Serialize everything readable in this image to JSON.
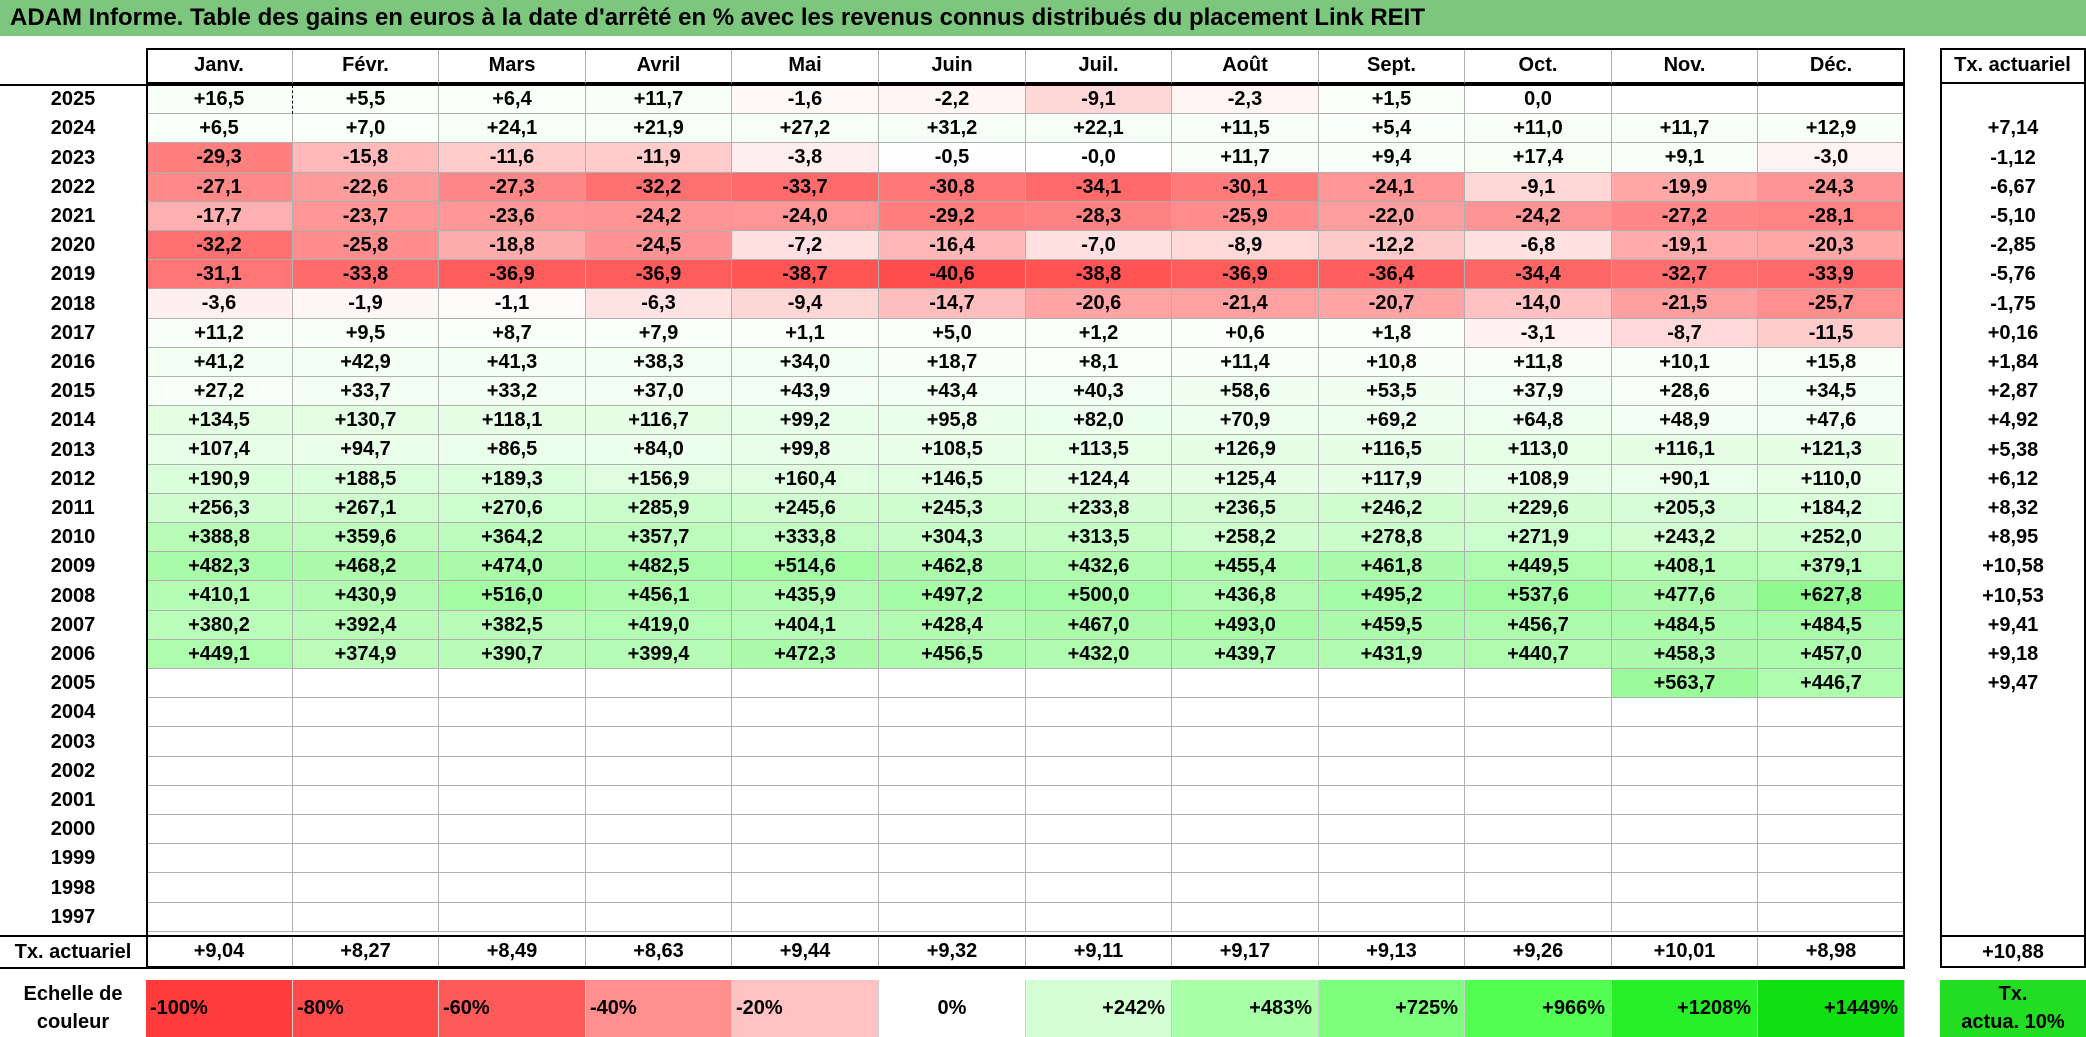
{
  "title": "ADAM Informe. Table des gains en euros à la date d'arrêté en % avec les revenus connus distribués du placement Link REIT",
  "months": [
    "Janv.",
    "Févr.",
    "Mars",
    "Avril",
    "Mai",
    "Juin",
    "Juil.",
    "Août",
    "Sept.",
    "Oct.",
    "Nov.",
    "Déc."
  ],
  "tx_header": "Tx. actuariel",
  "chart_data": {
    "type": "heatmap",
    "columns": [
      "Janv.",
      "Févr.",
      "Mars",
      "Avril",
      "Mai",
      "Juin",
      "Juil.",
      "Août",
      "Sept.",
      "Oct.",
      "Nov.",
      "Déc."
    ],
    "rows": [
      {
        "year": "2025",
        "values": [
          "+16,5",
          "+5,5",
          "+6,4",
          "+11,7",
          "-1,6",
          "-2,2",
          "-9,1",
          "-2,3",
          "+1,5",
          "0,0",
          "",
          ""
        ],
        "tx": ""
      },
      {
        "year": "2024",
        "values": [
          "+6,5",
          "+7,0",
          "+24,1",
          "+21,9",
          "+27,2",
          "+31,2",
          "+22,1",
          "+11,5",
          "+5,4",
          "+11,0",
          "+11,7",
          "+12,9"
        ],
        "tx": "+7,14"
      },
      {
        "year": "2023",
        "values": [
          "-29,3",
          "-15,8",
          "-11,6",
          "-11,9",
          "-3,8",
          "-0,5",
          "-0,0",
          "+11,7",
          "+9,4",
          "+17,4",
          "+9,1",
          "-3,0"
        ],
        "tx": "-1,12"
      },
      {
        "year": "2022",
        "values": [
          "-27,1",
          "-22,6",
          "-27,3",
          "-32,2",
          "-33,7",
          "-30,8",
          "-34,1",
          "-30,1",
          "-24,1",
          "-9,1",
          "-19,9",
          "-24,3"
        ],
        "tx": "-6,67"
      },
      {
        "year": "2021",
        "values": [
          "-17,7",
          "-23,7",
          "-23,6",
          "-24,2",
          "-24,0",
          "-29,2",
          "-28,3",
          "-25,9",
          "-22,0",
          "-24,2",
          "-27,2",
          "-28,1"
        ],
        "tx": "-5,10"
      },
      {
        "year": "2020",
        "values": [
          "-32,2",
          "-25,8",
          "-18,8",
          "-24,5",
          "-7,2",
          "-16,4",
          "-7,0",
          "-8,9",
          "-12,2",
          "-6,8",
          "-19,1",
          "-20,3"
        ],
        "tx": "-2,85"
      },
      {
        "year": "2019",
        "values": [
          "-31,1",
          "-33,8",
          "-36,9",
          "-36,9",
          "-38,7",
          "-40,6",
          "-38,8",
          "-36,9",
          "-36,4",
          "-34,4",
          "-32,7",
          "-33,9"
        ],
        "tx": "-5,76"
      },
      {
        "year": "2018",
        "values": [
          "-3,6",
          "-1,9",
          "-1,1",
          "-6,3",
          "-9,4",
          "-14,7",
          "-20,6",
          "-21,4",
          "-20,7",
          "-14,0",
          "-21,5",
          "-25,7"
        ],
        "tx": "-1,75"
      },
      {
        "year": "2017",
        "values": [
          "+11,2",
          "+9,5",
          "+8,7",
          "+7,9",
          "+1,1",
          "+5,0",
          "+1,2",
          "+0,6",
          "+1,8",
          "-3,1",
          "-8,7",
          "-11,5"
        ],
        "tx": "+0,16"
      },
      {
        "year": "2016",
        "values": [
          "+41,2",
          "+42,9",
          "+41,3",
          "+38,3",
          "+34,0",
          "+18,7",
          "+8,1",
          "+11,4",
          "+10,8",
          "+11,8",
          "+10,1",
          "+15,8"
        ],
        "tx": "+1,84"
      },
      {
        "year": "2015",
        "values": [
          "+27,2",
          "+33,7",
          "+33,2",
          "+37,0",
          "+43,9",
          "+43,4",
          "+40,3",
          "+58,6",
          "+53,5",
          "+37,9",
          "+28,6",
          "+34,5"
        ],
        "tx": "+2,87"
      },
      {
        "year": "2014",
        "values": [
          "+134,5",
          "+130,7",
          "+118,1",
          "+116,7",
          "+99,2",
          "+95,8",
          "+82,0",
          "+70,9",
          "+69,2",
          "+64,8",
          "+48,9",
          "+47,6"
        ],
        "tx": "+4,92"
      },
      {
        "year": "2013",
        "values": [
          "+107,4",
          "+94,7",
          "+86,5",
          "+84,0",
          "+99,8",
          "+108,5",
          "+113,5",
          "+126,9",
          "+116,5",
          "+113,0",
          "+116,1",
          "+121,3"
        ],
        "tx": "+5,38"
      },
      {
        "year": "2012",
        "values": [
          "+190,9",
          "+188,5",
          "+189,3",
          "+156,9",
          "+160,4",
          "+146,5",
          "+124,4",
          "+125,4",
          "+117,9",
          "+108,9",
          "+90,1",
          "+110,0"
        ],
        "tx": "+6,12"
      },
      {
        "year": "2011",
        "values": [
          "+256,3",
          "+267,1",
          "+270,6",
          "+285,9",
          "+245,6",
          "+245,3",
          "+233,8",
          "+236,5",
          "+246,2",
          "+229,6",
          "+205,3",
          "+184,2"
        ],
        "tx": "+8,32"
      },
      {
        "year": "2010",
        "values": [
          "+388,8",
          "+359,6",
          "+364,2",
          "+357,7",
          "+333,8",
          "+304,3",
          "+313,5",
          "+258,2",
          "+278,8",
          "+271,9",
          "+243,2",
          "+252,0"
        ],
        "tx": "+8,95"
      },
      {
        "year": "2009",
        "values": [
          "+482,3",
          "+468,2",
          "+474,0",
          "+482,5",
          "+514,6",
          "+462,8",
          "+432,6",
          "+455,4",
          "+461,8",
          "+449,5",
          "+408,1",
          "+379,1"
        ],
        "tx": "+10,58"
      },
      {
        "year": "2008",
        "values": [
          "+410,1",
          "+430,9",
          "+516,0",
          "+456,1",
          "+435,9",
          "+497,2",
          "+500,0",
          "+436,8",
          "+495,2",
          "+537,6",
          "+477,6",
          "+627,8"
        ],
        "tx": "+10,53"
      },
      {
        "year": "2007",
        "values": [
          "+380,2",
          "+392,4",
          "+382,5",
          "+419,0",
          "+404,1",
          "+428,4",
          "+467,0",
          "+493,0",
          "+459,5",
          "+456,7",
          "+484,5",
          "+484,5"
        ],
        "tx": "+9,41"
      },
      {
        "year": "2006",
        "values": [
          "+449,1",
          "+374,9",
          "+390,7",
          "+399,4",
          "+472,3",
          "+456,5",
          "+432,0",
          "+439,7",
          "+431,9",
          "+440,7",
          "+458,3",
          "+457,0"
        ],
        "tx": "+9,18"
      },
      {
        "year": "2005",
        "values": [
          "",
          "",
          "",
          "",
          "",
          "",
          "",
          "",
          "",
          "",
          "+563,7",
          "+446,7"
        ],
        "tx": "+9,47"
      },
      {
        "year": "2004",
        "values": [
          "",
          "",
          "",
          "",
          "",
          "",
          "",
          "",
          "",
          "",
          "",
          ""
        ],
        "tx": ""
      },
      {
        "year": "2003",
        "values": [
          "",
          "",
          "",
          "",
          "",
          "",
          "",
          "",
          "",
          "",
          "",
          ""
        ],
        "tx": ""
      },
      {
        "year": "2002",
        "values": [
          "",
          "",
          "",
          "",
          "",
          "",
          "",
          "",
          "",
          "",
          "",
          ""
        ],
        "tx": ""
      },
      {
        "year": "2001",
        "values": [
          "",
          "",
          "",
          "",
          "",
          "",
          "",
          "",
          "",
          "",
          "",
          ""
        ],
        "tx": ""
      },
      {
        "year": "2000",
        "values": [
          "",
          "",
          "",
          "",
          "",
          "",
          "",
          "",
          "",
          "",
          "",
          ""
        ],
        "tx": ""
      },
      {
        "year": "1999",
        "values": [
          "",
          "",
          "",
          "",
          "",
          "",
          "",
          "",
          "",
          "",
          "",
          ""
        ],
        "tx": ""
      },
      {
        "year": "1998",
        "values": [
          "",
          "",
          "",
          "",
          "",
          "",
          "",
          "",
          "",
          "",
          "",
          ""
        ],
        "tx": ""
      },
      {
        "year": "1997",
        "values": [
          "",
          "",
          "",
          "",
          "",
          "",
          "",
          "",
          "",
          "",
          "",
          ""
        ],
        "tx": ""
      }
    ],
    "footer": {
      "label": "Tx. actuariel",
      "values": [
        "+9,04",
        "+8,27",
        "+8,49",
        "+8,63",
        "+9,44",
        "+9,32",
        "+9,11",
        "+9,17",
        "+9,13",
        "+9,26",
        "+10,01",
        "+8,98"
      ],
      "tx": "+10,88"
    },
    "color_scale": {
      "label_line1": "Echelle de",
      "label_line2": "couleur",
      "stops": [
        {
          "label": "-100%",
          "color": "#ff3b3b"
        },
        {
          "label": "-80%",
          "color": "#ff4a4a"
        },
        {
          "label": "-60%",
          "color": "#ff5a5a"
        },
        {
          "label": "-40%",
          "color": "#ff8e8e"
        },
        {
          "label": "-20%",
          "color": "#ffc2c2"
        },
        {
          "label": "0%",
          "color": "#ffffff"
        },
        {
          "label": "+242%",
          "color": "#d4ffd4"
        },
        {
          "label": "+483%",
          "color": "#a8ffa8"
        },
        {
          "label": "+725%",
          "color": "#7cff7c"
        },
        {
          "label": "+966%",
          "color": "#52ff52"
        },
        {
          "label": "+1208%",
          "color": "#28f028"
        },
        {
          "label": "+1449%",
          "color": "#10e010"
        }
      ],
      "tx_label_line1": "Tx.",
      "tx_label_line2": "actua. 10%",
      "tx_color": "#22dd22"
    }
  }
}
